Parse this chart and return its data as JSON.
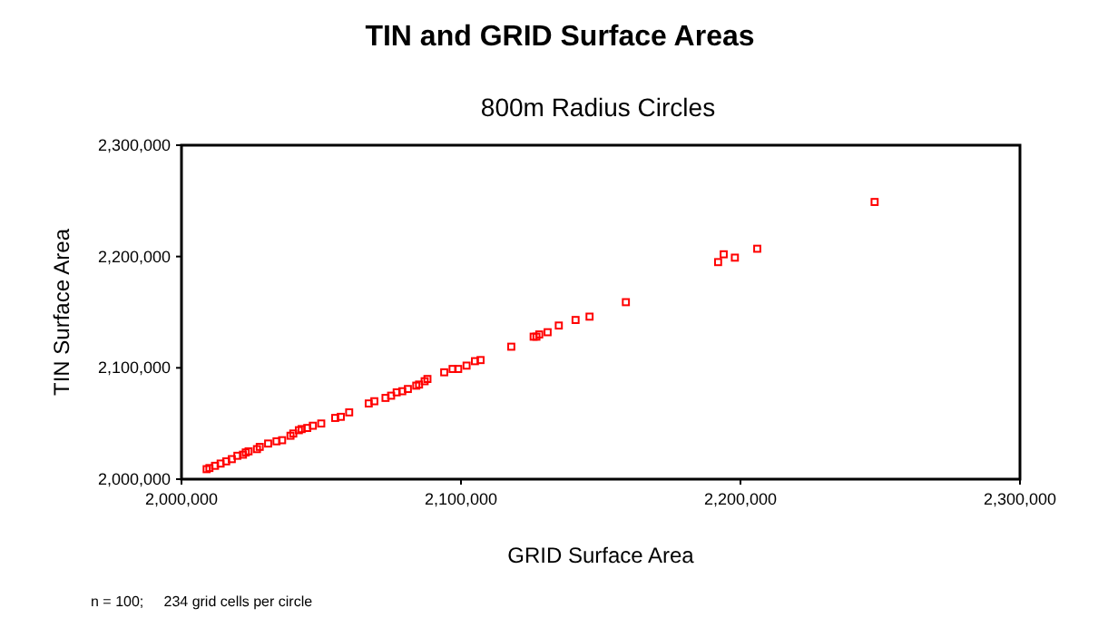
{
  "chart_data": {
    "type": "scatter",
    "title": "TIN and GRID Surface Areas",
    "subtitle": "800m Radius Circles",
    "xlabel": "GRID Surface Area",
    "ylabel": "TIN Surface Area",
    "annotations": [
      "n = 100;     234 grid cells per circle"
    ],
    "marker": "square",
    "grid": false,
    "xlim": [
      2000000,
      2300000
    ],
    "ylim": [
      2000000,
      2300000
    ],
    "xticks": [
      {
        "value": 2000000,
        "label": "2,000,000"
      },
      {
        "value": 2100000,
        "label": "2,100,000"
      },
      {
        "value": 2200000,
        "label": "2,200,000"
      },
      {
        "value": 2300000,
        "label": "2,300,000"
      }
    ],
    "yticks": [
      {
        "value": 2000000,
        "label": "2,000,000"
      },
      {
        "value": 2100000,
        "label": "2,100,000"
      },
      {
        "value": 2200000,
        "label": "2,200,000"
      },
      {
        "value": 2300000,
        "label": "2,300,000"
      }
    ],
    "series": [
      {
        "color": "#ff0000",
        "x": [
          2009000,
          2010000,
          2012000,
          2014000,
          2016000,
          2018000,
          2020000,
          2022000,
          2023000,
          2024000,
          2027000,
          2028000,
          2031000,
          2034000,
          2036000,
          2039000,
          2040000,
          2042000,
          2043000,
          2045000,
          2047000,
          2050000,
          2055000,
          2057000,
          2060000,
          2067000,
          2069000,
          2073000,
          2075000,
          2077000,
          2079000,
          2081000,
          2084000,
          2085000,
          2087000,
          2088000,
          2094000,
          2097000,
          2099000,
          2102000,
          2105000,
          2107000,
          2118000,
          2126000,
          2127000,
          2128000,
          2131000,
          2135000,
          2141000,
          2146000,
          2159000,
          2192000,
          2194000,
          2198000,
          2206000,
          2248000
        ],
        "values": [
          2009000,
          2010000,
          2012000,
          2014000,
          2016000,
          2018000,
          2021000,
          2022000,
          2024000,
          2025000,
          2027000,
          2029000,
          2032000,
          2034000,
          2035000,
          2039000,
          2041000,
          2044000,
          2045000,
          2046000,
          2048000,
          2050000,
          2055000,
          2056000,
          2060000,
          2068000,
          2070000,
          2073000,
          2075000,
          2078000,
          2079000,
          2081000,
          2084000,
          2085000,
          2088000,
          2090000,
          2096000,
          2099000,
          2099000,
          2102000,
          2106000,
          2107000,
          2119000,
          2128000,
          2128000,
          2130000,
          2132000,
          2138000,
          2143000,
          2146000,
          2159000,
          2195000,
          2202000,
          2199000,
          2207000,
          2249000
        ]
      }
    ]
  }
}
